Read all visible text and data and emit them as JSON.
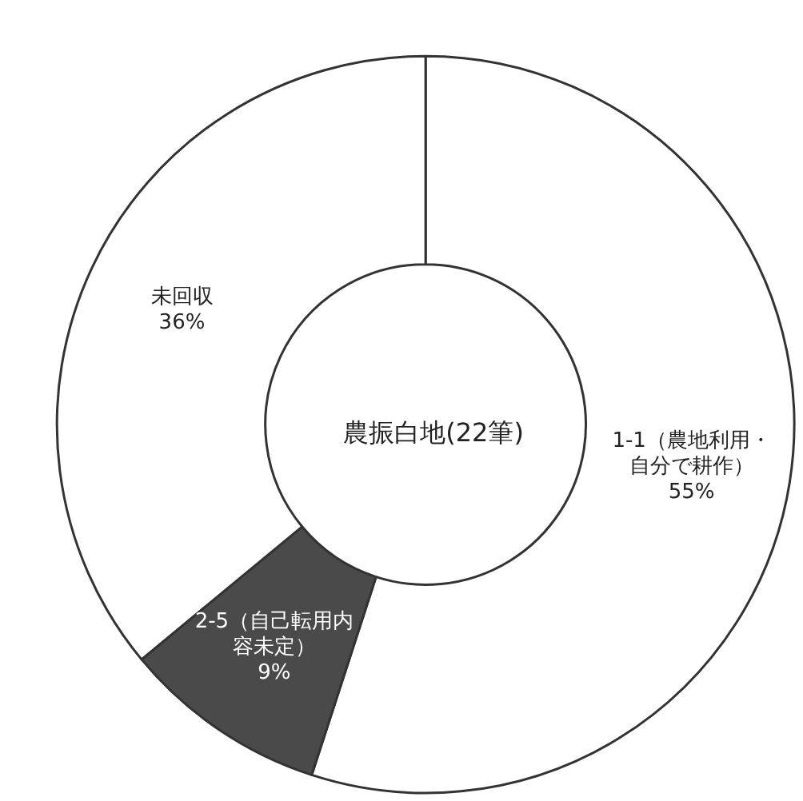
{
  "chart_data": {
    "type": "donut",
    "title": "農振白地(22筆)",
    "categories": [
      "1-1（農地利用・自分で耕作）",
      "2-5（自己転用内容未定）",
      "未回収"
    ],
    "values": [
      55,
      9,
      36
    ],
    "value_labels": [
      "55%",
      "9%",
      "36%"
    ],
    "colors": [
      "#ffffff",
      "#4a4a4a",
      "#ffffff"
    ],
    "legend": false
  }
}
